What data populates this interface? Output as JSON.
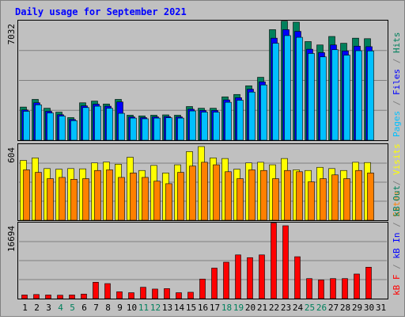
{
  "title": "Daily usage for September 2021",
  "colors": {
    "background": "#c0c0c0",
    "border": "#808080",
    "title": "#0000ff",
    "hits": "#00805c",
    "files": "#0000ff",
    "pages": "#00c0ff",
    "visits": "#ffff00",
    "sites": "#ff8000",
    "kbout": "#00805c",
    "kbin": "#0000ff",
    "kbf": "#ff0000",
    "weekend": "#00805c",
    "day": "#000000",
    "divider": "#808080"
  },
  "chart_data": [
    {
      "type": "bar",
      "title": "Daily usage for September 2021",
      "categories": [
        "1",
        "2",
        "3",
        "4",
        "5",
        "6",
        "7",
        "8",
        "9",
        "10",
        "11",
        "12",
        "13",
        "14",
        "15",
        "16",
        "17",
        "18",
        "19",
        "20",
        "21",
        "22",
        "23",
        "24",
        "25",
        "26",
        "27",
        "28",
        "29",
        "30",
        "31"
      ],
      "weekend_days": [
        4,
        5,
        11,
        12,
        18,
        19,
        25,
        26
      ],
      "ylabel_max": "7032",
      "ymax": 7032,
      "legend": [
        "Pages",
        "/",
        "Files",
        "/",
        "Hits"
      ],
      "series": [
        {
          "name": "Hits",
          "values": [
            1950,
            2400,
            1880,
            1650,
            1330,
            2200,
            2300,
            2130,
            2400,
            1470,
            1430,
            1470,
            1490,
            1470,
            1980,
            1880,
            1880,
            2550,
            2690,
            3200,
            3700,
            6500,
            7000,
            6940,
            5800,
            5600,
            6100,
            5700,
            6000,
            5970,
            null
          ]
        },
        {
          "name": "Files",
          "values": [
            1780,
            2200,
            1700,
            1500,
            1220,
            2020,
            2120,
            2000,
            2250,
            1370,
            1330,
            1370,
            1390,
            1370,
            1820,
            1750,
            1750,
            2370,
            2500,
            3000,
            3430,
            6000,
            6500,
            6400,
            5350,
            5150,
            5600,
            5250,
            5530,
            5500,
            null
          ]
        },
        {
          "name": "Pages",
          "values": [
            1700,
            2080,
            1600,
            1420,
            1150,
            1920,
            2000,
            1880,
            1580,
            1300,
            1260,
            1300,
            1320,
            1300,
            1720,
            1650,
            1650,
            2230,
            2350,
            2830,
            3250,
            5700,
            6150,
            6050,
            5100,
            4900,
            5320,
            5000,
            5260,
            5250,
            null
          ]
        }
      ]
    },
    {
      "type": "bar",
      "ylabel_max": "604",
      "ymax": 604,
      "legend": [
        "Sites",
        "/",
        "Visits"
      ],
      "series": [
        {
          "name": "Visits",
          "values": [
            475,
            495,
            410,
            405,
            410,
            408,
            455,
            462,
            445,
            500,
            395,
            435,
            375,
            440,
            545,
            585,
            495,
            490,
            405,
            455,
            460,
            440,
            490,
            400,
            395,
            420,
            410,
            395,
            460,
            458,
            null
          ]
        },
        {
          "name": "Sites",
          "values": [
            400,
            380,
            330,
            340,
            325,
            330,
            395,
            400,
            340,
            375,
            340,
            310,
            290,
            380,
            430,
            460,
            440,
            385,
            330,
            400,
            395,
            330,
            395,
            385,
            305,
            330,
            360,
            330,
            395,
            375,
            null
          ]
        }
      ]
    },
    {
      "type": "bar",
      "ylabel_max": "16694",
      "ymax": 16694,
      "legend": [
        "kB F",
        "/",
        "kB In",
        "/",
        "kB Out"
      ],
      "series": [
        {
          "name": "kB F",
          "values": [
            800,
            900,
            800,
            750,
            800,
            1000,
            3600,
            3300,
            1500,
            1300,
            2500,
            2100,
            2200,
            1300,
            1400,
            4300,
            6700,
            8000,
            9600,
            9000,
            9600,
            16600,
            16000,
            9200,
            4400,
            4100,
            4400,
            4400,
            5400,
            6900,
            null
          ]
        }
      ]
    }
  ]
}
